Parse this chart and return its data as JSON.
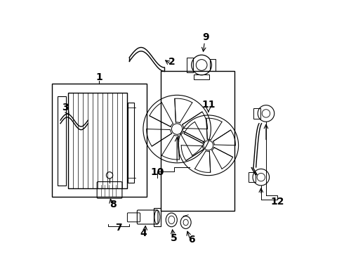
{
  "bg_color": "#ffffff",
  "line_color": "#000000",
  "label_color": "#000000",
  "figsize": [
    4.9,
    3.6
  ],
  "dpi": 100
}
